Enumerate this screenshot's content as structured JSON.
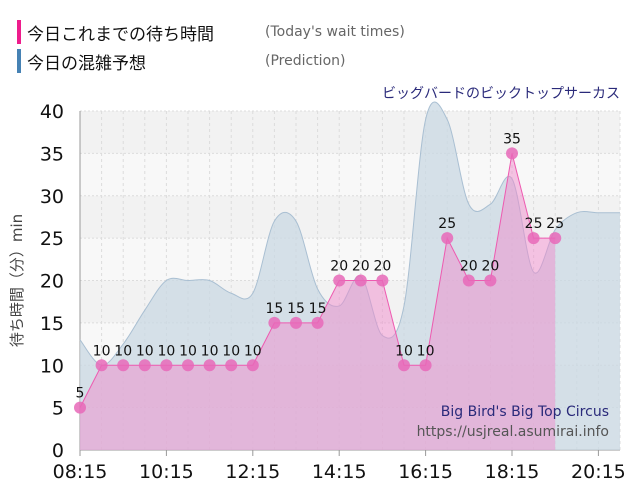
{
  "legend": [
    {
      "jp": "今日これまでの待ち時間",
      "en": "(Today's wait times)",
      "color": "#ee1c8c"
    },
    {
      "jp": "今日の混雑予想",
      "en": "(Prediction)",
      "color": "#4682b4"
    }
  ],
  "attraction_jp": "ビッグバードのビックトップサーカス",
  "watermark": {
    "name": "Big Bird's Big Top Circus",
    "url": "https://usjreal.asumirai.info"
  },
  "chart_data": {
    "type": "area",
    "ylabel": "待ち時間（分）min",
    "ylim": [
      0,
      40
    ],
    "yticks": [
      0,
      5,
      10,
      15,
      20,
      25,
      30,
      35,
      40
    ],
    "xticks": [
      "08:15",
      "10:15",
      "12:15",
      "14:15",
      "16:15",
      "18:15",
      "20:15"
    ],
    "xrange_minutes": [
      495,
      1245
    ],
    "series": [
      {
        "name": "今日の混雑予想 (Prediction)",
        "start": "08:15",
        "interval_min": 30,
        "values": [
          13,
          10,
          12.5,
          16.5,
          20,
          20,
          20,
          18.5,
          18.5,
          27,
          27,
          19,
          17,
          20.5,
          13.5,
          17,
          39,
          39,
          29,
          29,
          32,
          21,
          26,
          28,
          28,
          28
        ]
      },
      {
        "name": "今日これまでの待ち時間 (Today's wait times)",
        "start": "08:15",
        "interval_min": 30,
        "values": [
          5,
          10,
          10,
          10,
          10,
          10,
          10,
          10,
          10,
          15,
          15,
          15,
          20,
          20,
          20,
          10,
          10,
          25,
          20,
          20,
          35,
          25,
          25
        ]
      }
    ]
  }
}
